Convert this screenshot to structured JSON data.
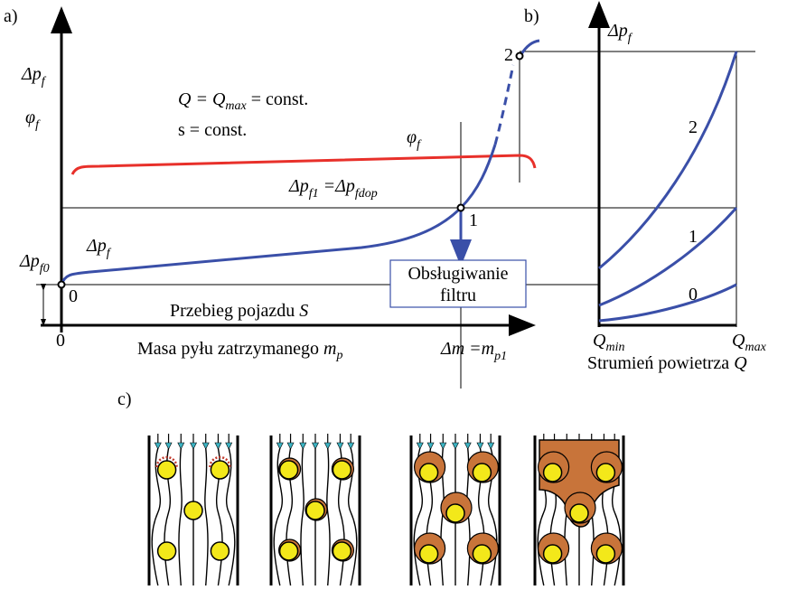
{
  "panel_a": {
    "label": "a)",
    "y_label_pressure": [
      "Δp",
      "f"
    ],
    "y_label_phi": [
      "φ",
      "f"
    ],
    "condition_q": [
      "Q = Q",
      "max",
      " = const."
    ],
    "condition_s": [
      "s = const."
    ],
    "phi_curve_label": [
      "φ",
      "f"
    ],
    "limit_label": [
      "Δp",
      "f1",
      " =Δp",
      "fdop"
    ],
    "point_1": "1",
    "point_2": "2",
    "curve_label": [
      "Δp",
      "f"
    ],
    "initial_label": [
      "Δp",
      "f0"
    ],
    "point_0": "0",
    "service_box": [
      "Obsługiwanie",
      "filtru"
    ],
    "mileage_label": [
      "Przebieg pojazdu ",
      "S"
    ],
    "origin": "0",
    "x_label": [
      "Masa pyłu zatrzymanego ",
      "m",
      "p"
    ],
    "delta_m_label": [
      "Δm =m",
      "p1"
    ]
  },
  "panel_b": {
    "label": "b)",
    "y_label": [
      "Δp",
      "f"
    ],
    "curve_2": "2",
    "curve_1": "1",
    "curve_0": "0",
    "x_min": [
      "Q",
      "min"
    ],
    "x_max": [
      "Q",
      "max"
    ],
    "x_label": [
      "Strumień powietrza ",
      "Q"
    ]
  },
  "panel_c": {
    "label": "c)"
  }
}
